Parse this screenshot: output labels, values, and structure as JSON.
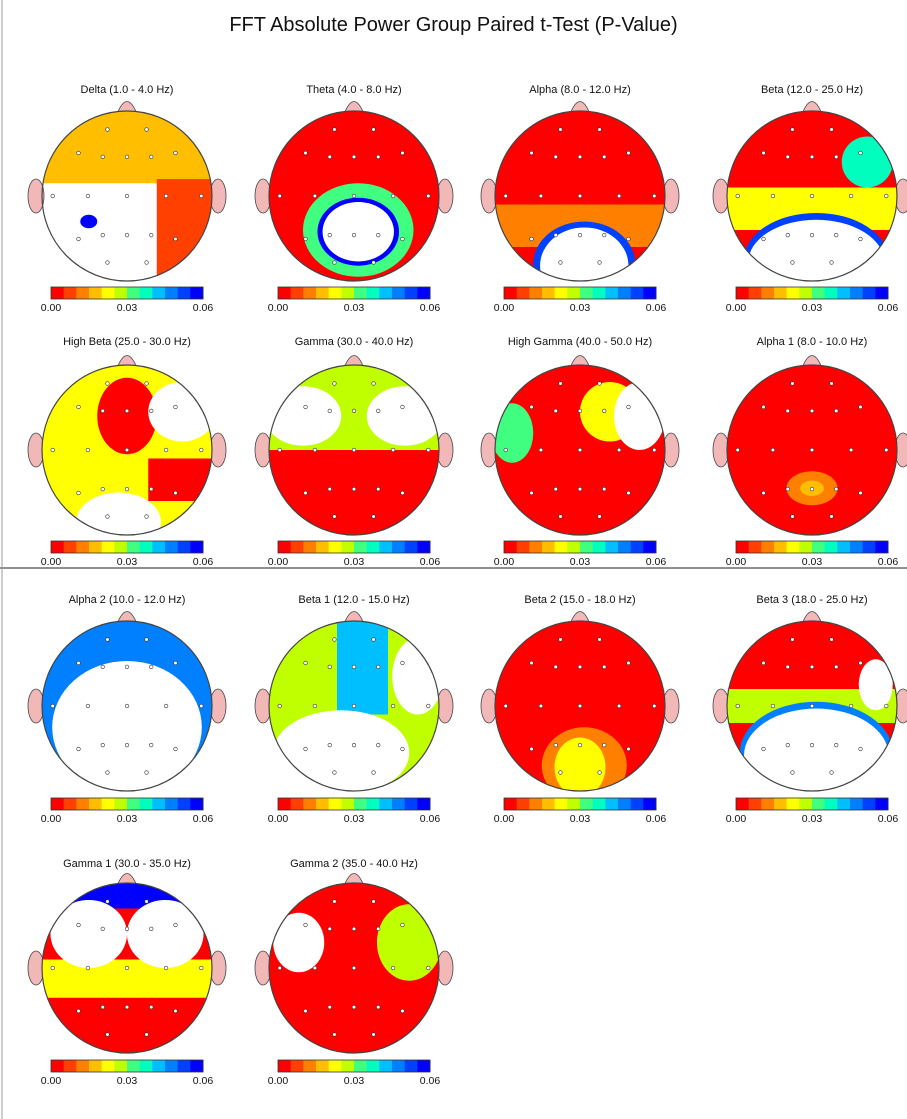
{
  "page": {
    "title": "FFT Absolute Power Group Paired t-Test  (P-Value)"
  },
  "colors": {
    "scale": [
      "#ff0000",
      "#ff4000",
      "#ff8000",
      "#ffbf00",
      "#ffff00",
      "#bfff00",
      "#40ff80",
      "#00ffbf",
      "#00bfff",
      "#0080ff",
      "#0040ff",
      "#0000ff"
    ],
    "significant": "#ff0000",
    "not_significant": "#ffffff",
    "head_outline": "#444444",
    "ear_nose": "#f2b8b8"
  },
  "chart_data": {
    "type": "heatmap",
    "colorbar": {
      "min": 0.0,
      "max": 0.06,
      "tick_labels": [
        "0.00",
        "0.03",
        "0.06"
      ]
    },
    "maps": [
      {
        "title": "Delta (1.0 - 4.0 Hz)",
        "dominant": "mixed"
      },
      {
        "title": "Theta (4.0 - 8.0 Hz)",
        "dominant": "mixed"
      },
      {
        "title": "Alpha (8.0 - 12.0 Hz)",
        "dominant": "mixed"
      },
      {
        "title": "Beta (12.0 - 25.0 Hz)",
        "dominant": "mixed"
      },
      {
        "title": "High Beta (25.0 - 30.0 Hz)",
        "dominant": "mixed"
      },
      {
        "title": "Gamma (30.0 - 40.0 Hz)",
        "dominant": "mixed"
      },
      {
        "title": "High Gamma (40.0 - 50.0 Hz)",
        "dominant": "mixed"
      },
      {
        "title": "Alpha 1 (8.0 - 10.0 Hz)",
        "dominant": "significant"
      },
      {
        "title": "Alpha 2 (10.0 - 12.0 Hz)",
        "dominant": "mixed"
      },
      {
        "title": "Beta 1 (12.0 - 15.0 Hz)",
        "dominant": "mixed"
      },
      {
        "title": "Beta 2 (15.0 - 18.0 Hz)",
        "dominant": "significant"
      },
      {
        "title": "Beta 3 (18.0 - 25.0 Hz)",
        "dominant": "mixed"
      },
      {
        "title": "Gamma 1 (30.0 - 35.0 Hz)",
        "dominant": "mixed"
      },
      {
        "title": "Gamma 2 (35.0 - 40.0 Hz)",
        "dominant": "mixed"
      }
    ]
  }
}
